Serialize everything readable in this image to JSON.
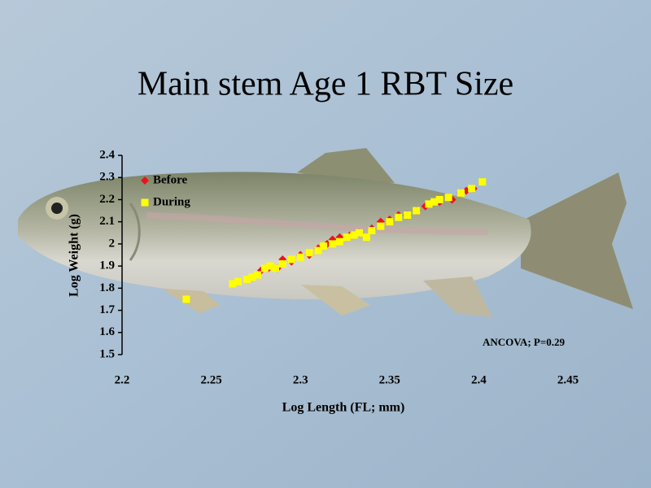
{
  "chart_data": {
    "type": "scatter",
    "title": "Main stem Age 1 RBT Size",
    "xlabel": "Log Length (FL; mm)",
    "ylabel": "Log Weight (g)",
    "annotation": "ANCOVA; P=0.29",
    "xlim": [
      2.2,
      2.45
    ],
    "xticks": [
      2.2,
      2.25,
      2.3,
      2.35,
      2.4,
      2.45
    ],
    "ylim": [
      1.5,
      2.4
    ],
    "yticks": [
      1.5,
      1.6,
      1.7,
      1.8,
      1.9,
      2,
      2.1,
      2.2,
      2.3,
      2.4
    ],
    "legend": "upper left",
    "series": [
      {
        "name": "Before",
        "color": "#e8141c",
        "marker": "diamond",
        "x": [
          2.278,
          2.282,
          2.287,
          2.29,
          2.295,
          2.3,
          2.305,
          2.31,
          2.315,
          2.318,
          2.322,
          2.328,
          2.333,
          2.34,
          2.345,
          2.35,
          2.355,
          2.36,
          2.365,
          2.37,
          2.378,
          2.385,
          2.39,
          2.393,
          2.397
        ],
        "values": [
          1.88,
          1.89,
          1.89,
          1.93,
          1.92,
          1.95,
          1.95,
          1.98,
          2.0,
          2.02,
          2.03,
          2.04,
          2.05,
          2.07,
          2.1,
          2.11,
          2.13,
          2.13,
          2.15,
          2.17,
          2.19,
          2.2,
          2.23,
          2.24,
          2.25
        ]
      },
      {
        "name": "During",
        "color": "#ffff00",
        "marker": "square",
        "x": [
          2.236,
          2.262,
          2.265,
          2.27,
          2.273,
          2.276,
          2.28,
          2.283,
          2.286,
          2.29,
          2.295,
          2.3,
          2.305,
          2.31,
          2.313,
          2.318,
          2.322,
          2.326,
          2.33,
          2.333,
          2.337,
          2.34,
          2.345,
          2.35,
          2.355,
          2.36,
          2.365,
          2.372,
          2.375,
          2.378,
          2.383,
          2.39,
          2.396,
          2.402
        ],
        "values": [
          1.75,
          1.82,
          1.83,
          1.84,
          1.85,
          1.86,
          1.89,
          1.9,
          1.89,
          1.91,
          1.93,
          1.94,
          1.96,
          1.97,
          1.99,
          2.0,
          2.01,
          2.03,
          2.04,
          2.05,
          2.03,
          2.06,
          2.08,
          2.1,
          2.12,
          2.13,
          2.15,
          2.18,
          2.19,
          2.2,
          2.21,
          2.23,
          2.25,
          2.28
        ]
      }
    ]
  }
}
